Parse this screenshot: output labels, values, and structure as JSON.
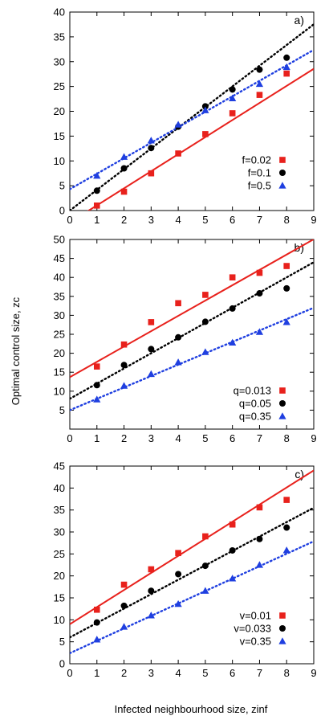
{
  "figure": {
    "ylabel": "Optimal control size, zc",
    "xlabel": "Infected neighbourhood size, zinf"
  },
  "chart_data": [
    {
      "type": "scatter",
      "panel_label": "a)",
      "xlim": [
        0,
        9
      ],
      "ylim": [
        0,
        40
      ],
      "xticks": [
        0,
        1,
        2,
        3,
        4,
        5,
        6,
        7,
        8,
        9
      ],
      "yticks": [
        0,
        5,
        10,
        15,
        20,
        25,
        30,
        35,
        40
      ],
      "show_x_ticklabels": true,
      "grid": false,
      "legend_position": "bottom-right",
      "series": [
        {
          "name": "f=0.02",
          "color": "#e8211c",
          "marker": "square",
          "x": [
            1,
            2,
            3,
            4,
            5,
            6,
            7,
            8
          ],
          "y": [
            1.0,
            3.8,
            7.5,
            11.5,
            15.4,
            19.6,
            23.3,
            27.6
          ],
          "fit": {
            "style": "solid",
            "y0": -2.4,
            "slope": 3.44
          }
        },
        {
          "name": "f=0.1",
          "color": "#000000",
          "marker": "circle",
          "x": [
            1,
            2,
            3,
            4,
            5,
            6,
            7,
            8
          ],
          "y": [
            4.0,
            8.5,
            12.6,
            16.9,
            21.0,
            24.4,
            28.4,
            30.8
          ],
          "fit": {
            "style": "dotted",
            "y0": 0.0,
            "slope": 4.17
          }
        },
        {
          "name": "f=0.5",
          "color": "#1f3fe0",
          "marker": "triangle",
          "x": [
            1,
            2,
            3,
            4,
            5,
            6,
            7,
            8
          ],
          "y": [
            7.0,
            10.8,
            14.1,
            17.3,
            20.2,
            22.6,
            25.5,
            28.9
          ],
          "fit": {
            "style": "dotted",
            "y0": 4.3,
            "slope": 3.12
          }
        }
      ]
    },
    {
      "type": "scatter",
      "panel_label": "b)",
      "xlim": [
        0,
        9
      ],
      "ylim": [
        0,
        50
      ],
      "xticks": [
        0,
        1,
        2,
        3,
        4,
        5,
        6,
        7,
        8,
        9
      ],
      "yticks": [
        5,
        10,
        15,
        20,
        25,
        30,
        35,
        40,
        45,
        50
      ],
      "show_x_ticklabels": true,
      "grid": false,
      "legend_position": "bottom-right",
      "series": [
        {
          "name": "q=0.013",
          "color": "#e8211c",
          "marker": "square",
          "x": [
            1,
            2,
            3,
            4,
            5,
            6,
            7,
            8
          ],
          "y": [
            16.5,
            22.3,
            28.2,
            33.2,
            35.4,
            40.0,
            41.2,
            43.0
          ],
          "fit": {
            "style": "solid",
            "y0": 13.7,
            "slope": 4.04
          }
        },
        {
          "name": "q=0.05",
          "color": "#000000",
          "marker": "circle",
          "x": [
            1,
            2,
            3,
            4,
            5,
            6,
            7,
            8
          ],
          "y": [
            11.6,
            16.9,
            21.1,
            24.2,
            28.3,
            31.8,
            35.8,
            37.1
          ],
          "fit": {
            "style": "dotted",
            "y0": 8.0,
            "slope": 4.0
          }
        },
        {
          "name": "q=0.35",
          "color": "#1f3fe0",
          "marker": "triangle",
          "x": [
            1,
            2,
            3,
            4,
            5,
            6,
            7,
            8
          ],
          "y": [
            7.8,
            11.4,
            14.5,
            17.6,
            20.3,
            22.8,
            25.6,
            28.2
          ],
          "fit": {
            "style": "dotted",
            "y0": 5.0,
            "slope": 3.0
          }
        }
      ]
    },
    {
      "type": "scatter",
      "panel_label": "c)",
      "xlim": [
        0,
        9
      ],
      "ylim": [
        0,
        45
      ],
      "xticks": [
        0,
        1,
        2,
        3,
        4,
        5,
        6,
        7,
        8,
        9
      ],
      "yticks": [
        0,
        5,
        10,
        15,
        20,
        25,
        30,
        35,
        40,
        45
      ],
      "show_x_ticklabels": true,
      "grid": false,
      "legend_position": "bottom-right",
      "series": [
        {
          "name": "v=0.01",
          "color": "#e8211c",
          "marker": "square",
          "x": [
            1,
            2,
            3,
            4,
            5,
            6,
            7,
            8
          ],
          "y": [
            12.3,
            18.0,
            21.5,
            25.2,
            29.0,
            31.7,
            35.6,
            37.3
          ],
          "fit": {
            "style": "solid",
            "y0": 9.0,
            "slope": 3.89
          }
        },
        {
          "name": "v=0.033",
          "color": "#000000",
          "marker": "circle",
          "x": [
            1,
            2,
            3,
            4,
            5,
            6,
            7,
            8
          ],
          "y": [
            9.4,
            13.2,
            16.6,
            20.4,
            22.3,
            25.8,
            28.4,
            31.0
          ],
          "fit": {
            "style": "dotted",
            "y0": 6.0,
            "slope": 3.28
          }
        },
        {
          "name": "v=0.35",
          "color": "#1f3fe0",
          "marker": "triangle",
          "x": [
            1,
            2,
            3,
            4,
            5,
            6,
            7,
            8
          ],
          "y": [
            5.5,
            8.4,
            11.0,
            13.6,
            16.6,
            19.4,
            22.5,
            25.8
          ],
          "fit": {
            "style": "dotted",
            "y0": 2.4,
            "slope": 2.83
          }
        }
      ]
    }
  ]
}
